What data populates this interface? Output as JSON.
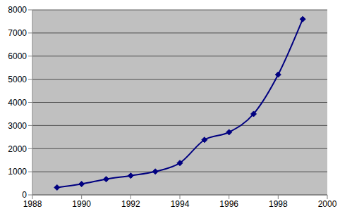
{
  "chart_data": {
    "type": "line",
    "x": [
      1989,
      1990,
      1991,
      1992,
      1993,
      1994,
      1995,
      1996,
      1997,
      1998,
      1999
    ],
    "values": [
      320,
      470,
      680,
      830,
      1010,
      1380,
      2380,
      2710,
      3500,
      5200,
      7600
    ],
    "color": "#000080",
    "marker": "diamond",
    "line_style": "solid",
    "xlim": [
      1988,
      2000
    ],
    "xticks": [
      1988,
      1990,
      1992,
      1994,
      1996,
      1998,
      2000
    ],
    "ylim": [
      0,
      8000
    ],
    "yticks": [
      0,
      1000,
      2000,
      3000,
      4000,
      5000,
      6000,
      7000,
      8000
    ],
    "grid": true
  }
}
